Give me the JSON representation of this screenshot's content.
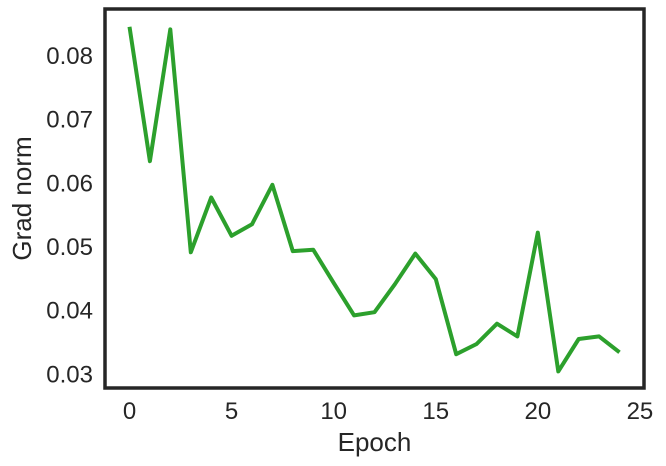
{
  "chart_data": {
    "type": "line",
    "xlabel": "Epoch",
    "ylabel": "Grad norm",
    "xlim": [
      -1.2,
      25.2
    ],
    "ylim": [
      0.0277,
      0.0872
    ],
    "xticks": [
      0,
      5,
      10,
      15,
      20,
      25
    ],
    "yticks": [
      0.03,
      0.04,
      0.05,
      0.06,
      0.07,
      0.08
    ],
    "ytick_labels": [
      "0.03",
      "0.04",
      "0.05",
      "0.06",
      "0.07",
      "0.08"
    ],
    "grid": false,
    "series": [
      {
        "color": "#2ca02c",
        "x": [
          0,
          1,
          2,
          3,
          4,
          5,
          6,
          7,
          8,
          9,
          10,
          11,
          12,
          13,
          14,
          15,
          16,
          17,
          18,
          19,
          20,
          21,
          22,
          23,
          24
        ],
        "values": [
          0.0844,
          0.0633,
          0.084,
          0.049,
          0.0576,
          0.0516,
          0.0534,
          0.0596,
          0.0492,
          0.0494,
          0.0442,
          0.0391,
          0.0396,
          0.044,
          0.0488,
          0.0448,
          0.033,
          0.0346,
          0.0378,
          0.0358,
          0.0521,
          0.0303,
          0.0354,
          0.0358,
          0.0333
        ]
      }
    ]
  }
}
